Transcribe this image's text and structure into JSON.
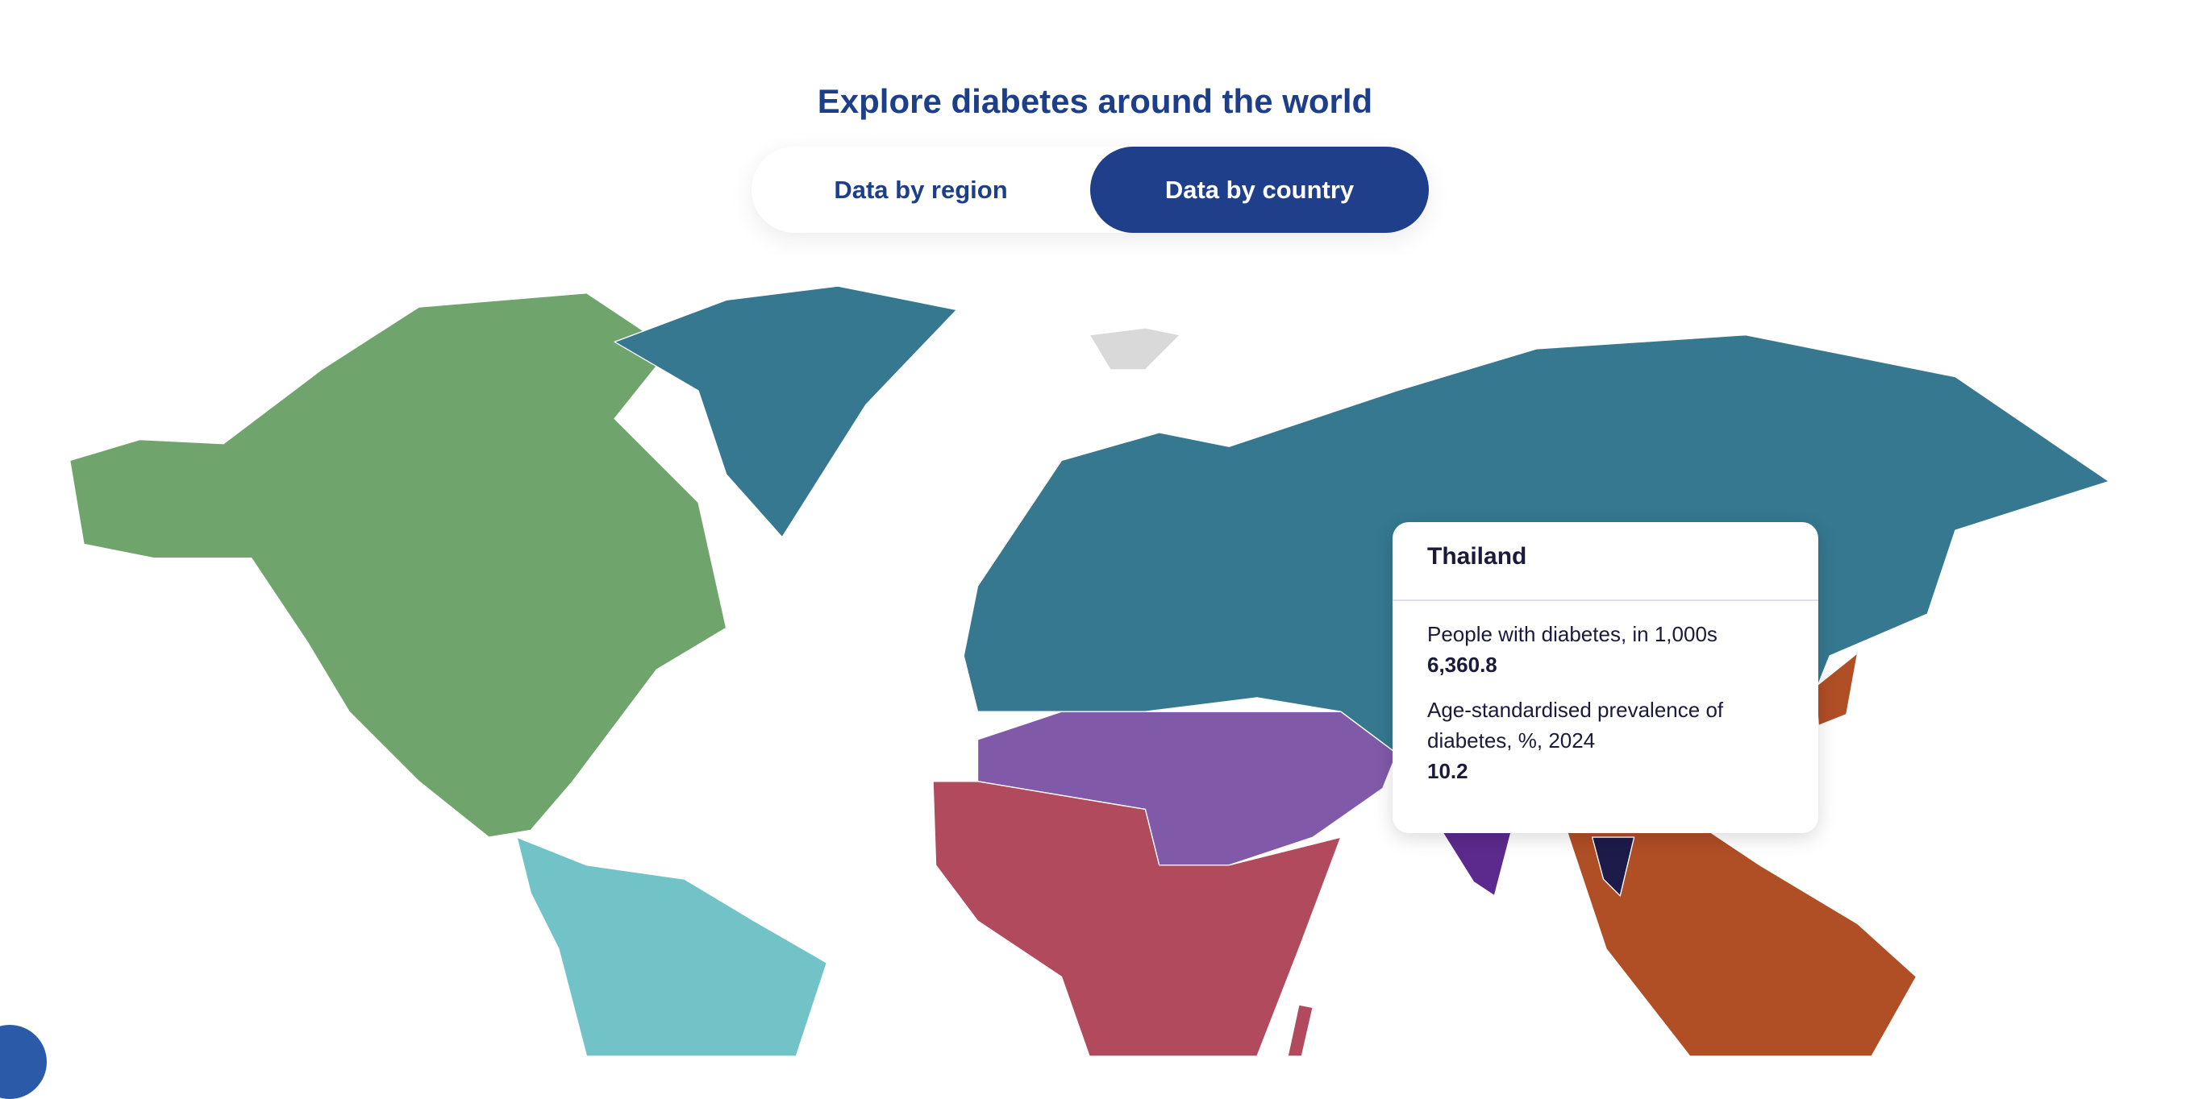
{
  "section_title": "Explore diabetes around the world",
  "toggle": {
    "options": [
      "Data by region",
      "Data by country"
    ],
    "selected": "Data by country"
  },
  "map": {
    "region_colors": {
      "north_america_caribbean": "#6fa56d",
      "europe": "#35788f",
      "middle_east_north_africa": "#8059a8",
      "africa": "#b04a5c",
      "south_central_america": "#72c3c7",
      "south_east_asia": "#5c2a8c",
      "western_pacific": "#b04e26",
      "no_data": "#d9d9d9",
      "hovered_country": "#1c1b4a"
    }
  },
  "tooltip": {
    "country": "Thailand",
    "metrics": [
      {
        "label": "People with diabetes, in 1,000s",
        "value": "6,360.8"
      },
      {
        "label": "Age-standardised prevalence of diabetes, %, 2024",
        "value": "10.2"
      }
    ]
  },
  "accessibility_button": {
    "icon": "accessibility-icon"
  }
}
